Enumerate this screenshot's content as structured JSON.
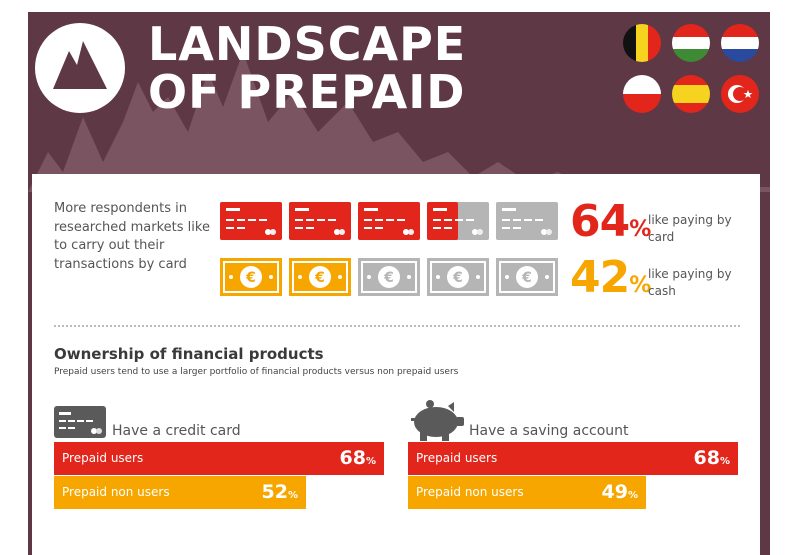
{
  "header": {
    "title_line1": "LANDSCAPE",
    "title_line2": "OF PREPAID",
    "flags": [
      "belgium-flag",
      "hungary-flag",
      "netherlands-flag",
      "poland-flag",
      "spain-flag",
      "turkey-flag"
    ]
  },
  "payment": {
    "intro": "More respondents in researched markets like to carry out their transactions by card",
    "card": {
      "value": "64",
      "percent_sign": "%",
      "label": "like paying by card",
      "filled": 3.5,
      "total": 5
    },
    "cash": {
      "value": "42",
      "percent_sign": "%",
      "label": "like paying by cash",
      "filled": 2,
      "total": 5
    }
  },
  "ownership": {
    "title": "Ownership of financial products",
    "subtitle": "Prepaid users tend to use a larger portfolio of financial products versus non prepaid users",
    "credit_card": {
      "label": "Have a credit card",
      "rows": [
        {
          "name": "Prepaid users",
          "value": "68",
          "percent": 68,
          "sign": "%"
        },
        {
          "name": "Prepaid non users",
          "value": "52",
          "percent": 52,
          "sign": "%"
        }
      ]
    },
    "saving_account": {
      "label": "Have a saving account",
      "rows": [
        {
          "name": "Prepaid users",
          "value": "68",
          "percent": 68,
          "sign": "%"
        },
        {
          "name": "Prepaid non users",
          "value": "49",
          "percent": 49,
          "sign": "%"
        }
      ]
    }
  },
  "colors": {
    "background": "#5e3844",
    "red": "#e3261c",
    "orange": "#f7a600",
    "grey": "#b5b5b5",
    "dark_grey": "#5a5a5a"
  }
}
